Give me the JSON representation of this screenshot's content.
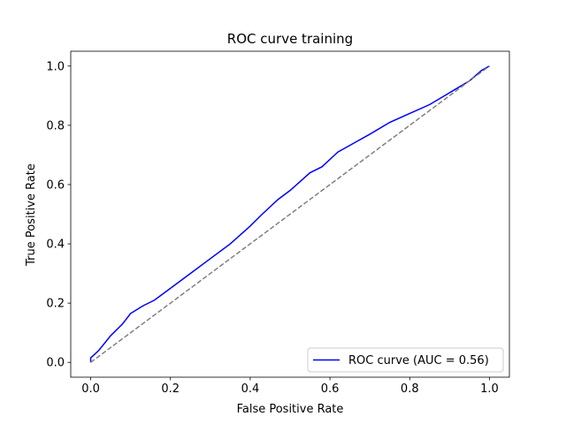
{
  "chart_data": {
    "type": "line",
    "title": "ROC curve training",
    "xlabel": "False Positive Rate",
    "ylabel": "True Positive Rate",
    "xlim": [
      -0.05,
      1.05
    ],
    "ylim": [
      -0.05,
      1.05
    ],
    "xticks": [
      0.0,
      0.2,
      0.4,
      0.6,
      0.8,
      1.0
    ],
    "yticks": [
      0.0,
      0.2,
      0.4,
      0.6,
      0.8,
      1.0
    ],
    "xtick_labels": [
      "0.0",
      "0.2",
      "0.4",
      "0.6",
      "0.8",
      "1.0"
    ],
    "ytick_labels": [
      "0.0",
      "0.2",
      "0.4",
      "0.6",
      "0.8",
      "1.0"
    ],
    "grid": false,
    "legend": {
      "position": "lower-right",
      "entries": [
        "ROC curve (AUC = 0.56)"
      ]
    },
    "series": [
      {
        "name": "ROC curve (AUC = 0.56)",
        "color": "#0000ff",
        "style": "solid",
        "x": [
          0.0,
          0.0,
          0.02,
          0.05,
          0.08,
          0.1,
          0.13,
          0.16,
          0.2,
          0.25,
          0.3,
          0.35,
          0.4,
          0.43,
          0.47,
          0.5,
          0.55,
          0.58,
          0.62,
          0.66,
          0.7,
          0.75,
          0.8,
          0.85,
          0.9,
          0.95,
          0.98,
          1.0
        ],
        "y": [
          0.0,
          0.015,
          0.04,
          0.09,
          0.13,
          0.165,
          0.19,
          0.21,
          0.25,
          0.3,
          0.35,
          0.4,
          0.46,
          0.5,
          0.55,
          0.58,
          0.64,
          0.66,
          0.71,
          0.74,
          0.77,
          0.81,
          0.84,
          0.87,
          0.91,
          0.95,
          0.985,
          1.0
        ]
      },
      {
        "name": "",
        "color": "#808080",
        "style": "dashed",
        "x": [
          0.0,
          1.0
        ],
        "y": [
          0.0,
          1.0
        ]
      }
    ]
  }
}
